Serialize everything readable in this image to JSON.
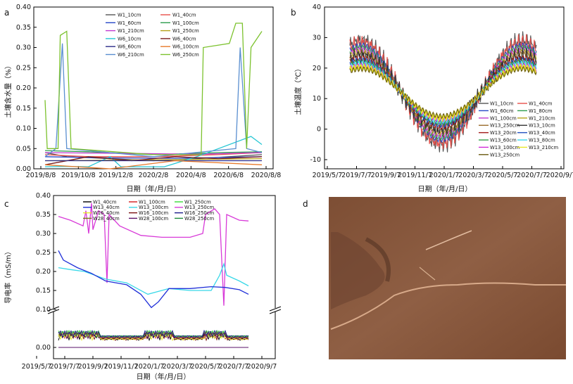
{
  "chart_data": [
    {
      "panel": "a",
      "type": "line",
      "xlabel": "日期（年/月/日）",
      "ylabel": "土壤含水量（%）",
      "xticks": [
        "2019/8/8",
        "2019/10/8",
        "2019/12/8",
        "2020/2/8",
        "2020/4/8",
        "2020/6/8",
        "2020/8/8"
      ],
      "yticks": [
        "0.00",
        "0.05",
        "0.10",
        "0.15",
        "0.20",
        "0.25",
        "0.30",
        "0.35",
        "0.40"
      ],
      "ylim": [
        0,
        0.4
      ],
      "legend_position": "top-right",
      "series": [
        {
          "name": "W1_10cm",
          "color": "#555555",
          "points": [
            [
              0,
              0.04
            ],
            [
              0.1,
              0.03
            ],
            [
              0.3,
              0.025
            ],
            [
              0.5,
              0.02
            ],
            [
              0.7,
              0.025
            ],
            [
              0.85,
              0.03
            ],
            [
              1,
              0.035
            ]
          ]
        },
        {
          "name": "W1_40cm",
          "color": "#e8504a",
          "points": [
            [
              0,
              0.035
            ],
            [
              0.2,
              0.03
            ],
            [
              0.5,
              0.03
            ],
            [
              0.8,
              0.035
            ],
            [
              1,
              0.04
            ]
          ]
        },
        {
          "name": "W1_60cm",
          "color": "#2848c8",
          "points": [
            [
              0,
              0.03
            ],
            [
              0.3,
              0.027
            ],
            [
              0.6,
              0.026
            ],
            [
              1,
              0.03
            ]
          ]
        },
        {
          "name": "W1_100cm",
          "color": "#2e9d4e",
          "points": [
            [
              0,
              0.045
            ],
            [
              0.2,
              0.042
            ],
            [
              0.5,
              0.035
            ],
            [
              0.8,
              0.04
            ],
            [
              1,
              0.042
            ]
          ]
        },
        {
          "name": "W1_210cm",
          "color": "#c23ad0",
          "points": [
            [
              0,
              0.04
            ],
            [
              0.4,
              0.038
            ],
            [
              0.7,
              0.036
            ],
            [
              1,
              0.04
            ]
          ]
        },
        {
          "name": "W1_250cm",
          "color": "#b5a21a",
          "points": [
            [
              0,
              0.02
            ],
            [
              0.5,
              0.022
            ],
            [
              1,
              0.025
            ]
          ]
        },
        {
          "name": "W6_10cm",
          "color": "#27c7d4",
          "points": [
            [
              0,
              0.005
            ],
            [
              0.1,
              0.006
            ],
            [
              0.2,
              0.005
            ],
            [
              0.3,
              0.03
            ],
            [
              0.35,
              0.005
            ],
            [
              0.55,
              0.005
            ],
            [
              0.7,
              0.03
            ],
            [
              0.95,
              0.08
            ],
            [
              1,
              0.06
            ]
          ]
        },
        {
          "name": "W6_40cm",
          "color": "#7a1d1d",
          "points": [
            [
              0,
              0.01
            ],
            [
              0.2,
              0.03
            ],
            [
              0.4,
              0.02
            ],
            [
              0.6,
              0.03
            ],
            [
              0.8,
              0.025
            ],
            [
              1,
              0.03
            ]
          ]
        },
        {
          "name": "W6_60cm",
          "color": "#2c2c8a",
          "points": [
            [
              0,
              0.02
            ],
            [
              0.5,
              0.02
            ],
            [
              1,
              0.02
            ]
          ]
        },
        {
          "name": "W6_100cm",
          "color": "#e87a2a",
          "points": [
            [
              0,
              0.01
            ],
            [
              0.3,
              0.0
            ],
            [
              0.6,
              0.02
            ],
            [
              1,
              0.01
            ]
          ]
        },
        {
          "name": "W6_210cm",
          "color": "#5a8fd0",
          "points": [
            [
              0,
              0.03
            ],
            [
              0.05,
              0.05
            ],
            [
              0.08,
              0.31
            ],
            [
              0.1,
              0.05
            ],
            [
              0.5,
              0.03
            ],
            [
              0.88,
              0.05
            ],
            [
              0.9,
              0.3
            ],
            [
              0.93,
              0.05
            ],
            [
              1,
              0.04
            ]
          ]
        },
        {
          "name": "W6_250cm",
          "color": "#7cc22e",
          "points": [
            [
              0,
              0.17
            ],
            [
              0.01,
              0.05
            ],
            [
              0.06,
              0.05
            ],
            [
              0.07,
              0.33
            ],
            [
              0.1,
              0.34
            ],
            [
              0.12,
              0.05
            ],
            [
              0.5,
              0.035
            ],
            [
              0.72,
              0.035
            ],
            [
              0.73,
              0.3
            ],
            [
              0.85,
              0.31
            ],
            [
              0.88,
              0.36
            ],
            [
              0.91,
              0.36
            ],
            [
              0.93,
              0.05
            ],
            [
              0.95,
              0.3
            ],
            [
              1,
              0.34
            ]
          ]
        }
      ]
    },
    {
      "panel": "b",
      "type": "line",
      "xlabel": "日期（年/月/日）",
      "ylabel": "土壤温度（℃）",
      "xticks": [
        "2019/5/7",
        "2019/7/7",
        "2019/9/7",
        "2019/11/7",
        "2020/1/7",
        "2020/3/7",
        "2020/5/7",
        "2020/7/7",
        "2020/9/7"
      ],
      "yticks": [
        "-10",
        "0",
        "10",
        "20",
        "30",
        "40"
      ],
      "ylim": [
        -13,
        40
      ],
      "legend_position": "bottom-right",
      "series_names": [
        "W1_10cm",
        "W1_40cm",
        "W1_60cm",
        "W1_80cm",
        "W1_100cm",
        "W1_210cm",
        "W13_250cm",
        "W13_10cm",
        "W13_20cm",
        "W13_40cm",
        "W13_60cm",
        "W13_80cm",
        "W13_100cm",
        "W13_210cm",
        "W13_250cm"
      ],
      "colors": [
        "#555555",
        "#e8504a",
        "#2848c8",
        "#2e9d4e",
        "#c23ad0",
        "#b5a21a",
        "#9a6a2a",
        "#333333",
        "#a01818",
        "#1f4fc0",
        "#2fa04a",
        "#38d8ee",
        "#d12cd8",
        "#e8e82a",
        "#6a5a10"
      ]
    },
    {
      "panel": "c",
      "type": "line",
      "xlabel": "日期（年/月/日）",
      "ylabel": "导电率（mS/m）",
      "xticks": [
        "2019/5/7",
        "2019/7/7",
        "2019/9/7",
        "2019/11/7",
        "2020/1/7",
        "2020/3/7",
        "2020/5/7",
        "2020/7/7",
        "2020/9/7"
      ],
      "yticks_upper": [
        "0.10",
        "0.15",
        "0.20",
        "0.25",
        "0.30",
        "0.35",
        "0.40"
      ],
      "yticks_lower": [
        "0.00"
      ],
      "axis_break": true,
      "legend_position": "top",
      "series": [
        {
          "name": "W1_40cm",
          "color": "#000000"
        },
        {
          "name": "W1_100cm",
          "color": "#d21c1c"
        },
        {
          "name": "W1_250cm",
          "color": "#3adc3a"
        },
        {
          "name": "W13_40cm",
          "color": "#1f2fd8"
        },
        {
          "name": "W13_100cm",
          "color": "#38d8e8"
        },
        {
          "name": "W13_250cm",
          "color": "#d83ad8"
        },
        {
          "name": "W16_40cm",
          "color": "#e8e82a"
        },
        {
          "name": "W16_100cm",
          "color": "#7a1010"
        },
        {
          "name": "W16_250cm",
          "color": "#1c1c8a"
        },
        {
          "name": "W28_40cm",
          "color": "#7a7a10"
        },
        {
          "name": "W28_100cm",
          "color": "#5a1068"
        },
        {
          "name": "W28_250cm",
          "color": "#1c8a3a"
        }
      ]
    }
  ],
  "panel_d": {
    "label": "d",
    "base_color": "#8a5a3e"
  }
}
